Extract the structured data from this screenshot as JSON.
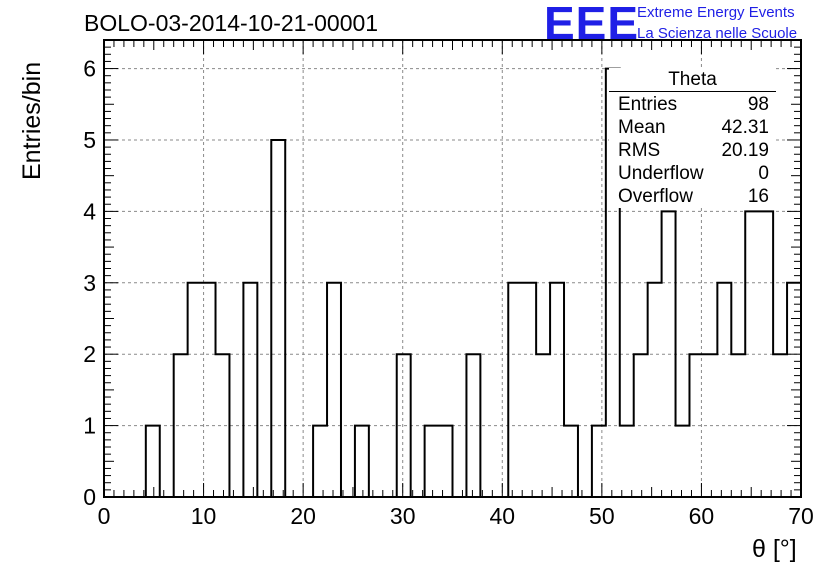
{
  "header": {
    "title": "BOLO-03-2014-10-21-00001",
    "logo": "EEE",
    "brand_line1": "Extreme Energy Events",
    "brand_line2": "La Scienza nelle Scuole"
  },
  "stats_box": {
    "title": "Theta",
    "rows": [
      {
        "label": "Entries",
        "value": "98"
      },
      {
        "label": "Mean",
        "value": "42.31"
      },
      {
        "label": "RMS",
        "value": "20.19"
      },
      {
        "label": "Underflow",
        "value": "0"
      },
      {
        "label": "Overflow",
        "value": "16"
      }
    ]
  },
  "chart_data": {
    "type": "histogram",
    "title": "BOLO-03-2014-10-21-00001",
    "xlabel": "θ [°]",
    "ylabel": "Entries/bin",
    "xlim": [
      0,
      70
    ],
    "ylim": [
      0,
      6.4
    ],
    "bin_width": 1.4,
    "bin_start": 0,
    "x_ticks": [
      0,
      10,
      20,
      30,
      40,
      50,
      60,
      70
    ],
    "y_ticks": [
      0,
      1,
      2,
      3,
      4,
      5,
      6
    ],
    "grid": true,
    "values": [
      0,
      0,
      0,
      1,
      0,
      2,
      3,
      3,
      2,
      0,
      3,
      0,
      5,
      0,
      0,
      1,
      3,
      0,
      1,
      0,
      0,
      2,
      0,
      1,
      1,
      0,
      2,
      0,
      0,
      3,
      3,
      2,
      3,
      1,
      0,
      1,
      6,
      1,
      2,
      3,
      4,
      1,
      2,
      2,
      3,
      2,
      4,
      4,
      2,
      3
    ]
  },
  "colors": {
    "brand": "#1f1fe6",
    "line": "#000000",
    "grid": "#8a8a8a"
  }
}
